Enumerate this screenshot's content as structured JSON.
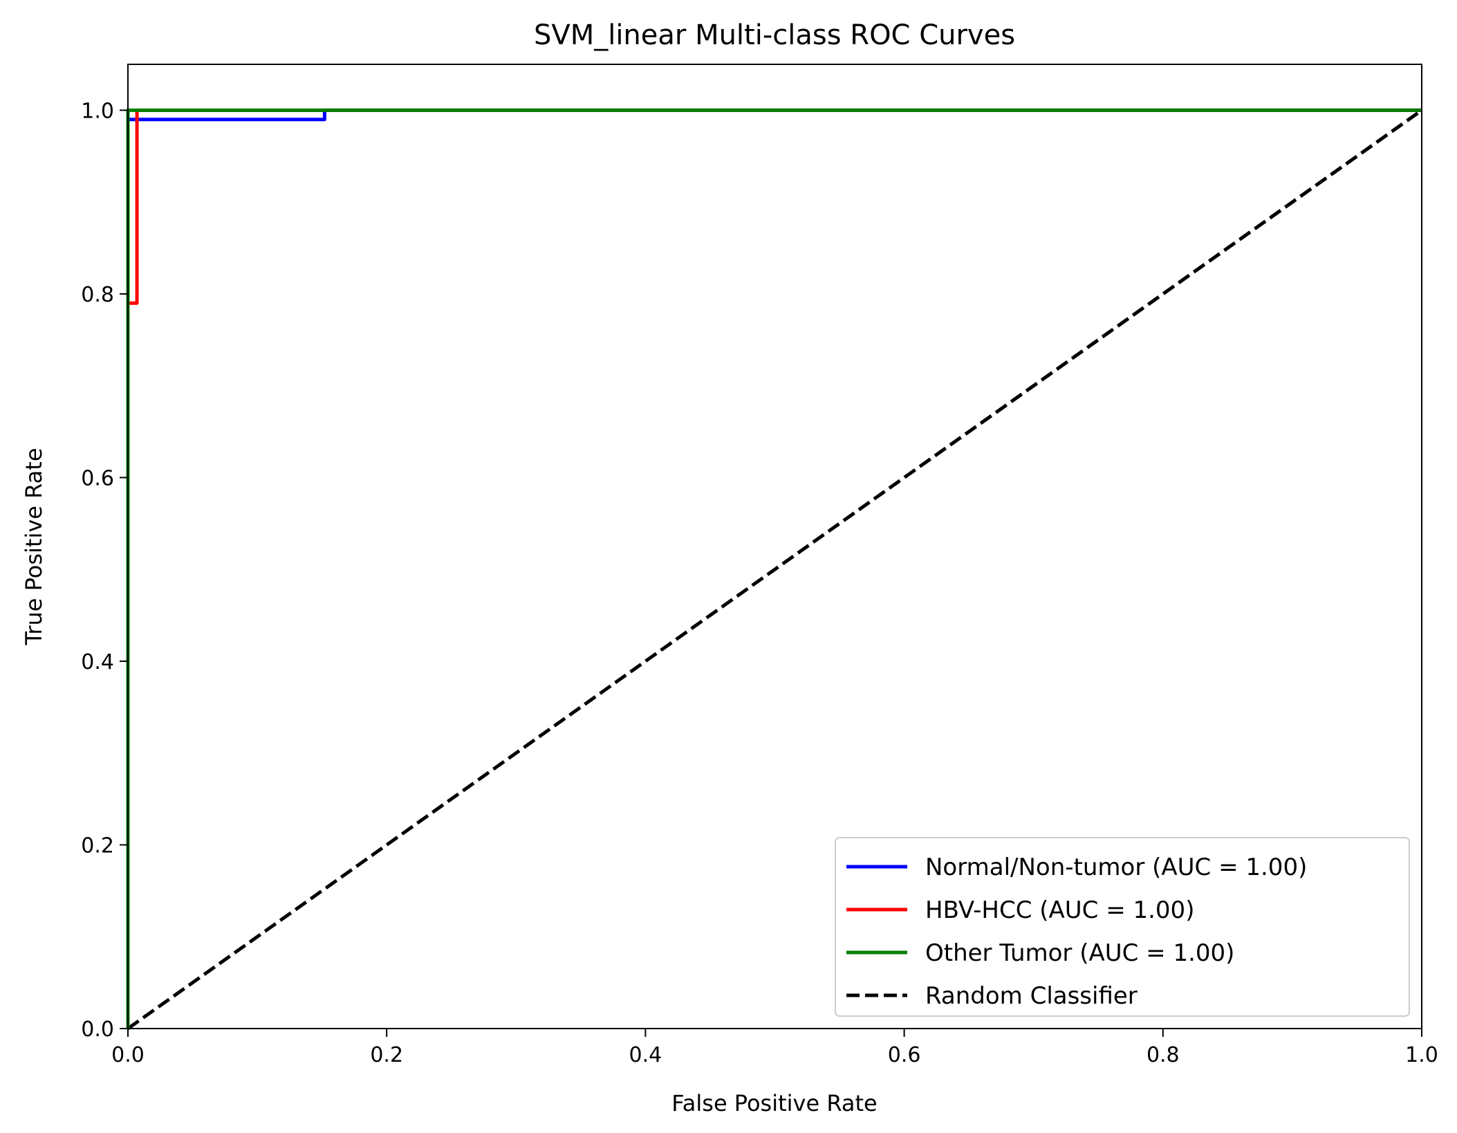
{
  "chart_data": {
    "type": "line",
    "title": "SVM_linear Multi-class ROC Curves",
    "xlabel": "False Positive Rate",
    "ylabel": "True Positive Rate",
    "xlim": [
      0.0,
      1.0
    ],
    "ylim": [
      0.0,
      1.05
    ],
    "xticks": [
      "0.0",
      "0.2",
      "0.4",
      "0.6",
      "0.8",
      "1.0"
    ],
    "yticks": [
      "0.0",
      "0.2",
      "0.4",
      "0.6",
      "0.8",
      "1.0"
    ],
    "grid": false,
    "legend_position": "lower-right",
    "series": [
      {
        "name": "Normal/Non-tumor (AUC = 1.00)",
        "color": "#0000ff",
        "dash": "solid",
        "x": [
          0.0,
          0.0,
          0.152,
          0.152,
          1.0
        ],
        "y": [
          0.0,
          0.99,
          0.99,
          1.0,
          1.0
        ]
      },
      {
        "name": "HBV-HCC (AUC = 1.00)",
        "color": "#ff0000",
        "dash": "solid",
        "x": [
          0.0,
          0.0,
          0.007,
          0.007,
          1.0
        ],
        "y": [
          0.0,
          0.79,
          0.79,
          1.0,
          1.0
        ]
      },
      {
        "name": "Other Tumor (AUC = 1.00)",
        "color": "#008000",
        "dash": "solid",
        "x": [
          0.0,
          0.0,
          1.0
        ],
        "y": [
          0.0,
          1.0,
          1.0
        ]
      },
      {
        "name": "Random Classifier",
        "color": "#000000",
        "dash": "dashed",
        "x": [
          0.0,
          1.0
        ],
        "y": [
          0.0,
          1.0
        ]
      }
    ]
  }
}
